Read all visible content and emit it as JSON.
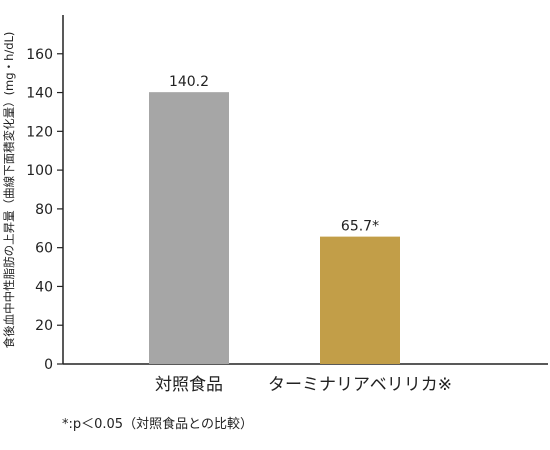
{
  "chart_data": {
    "type": "bar",
    "ylabel": "食後血中中性脂肪の上昇量（曲線下面積変化量）(mg・h/dL)",
    "categories": [
      "対照食品",
      "ターミナリアベリリカ※"
    ],
    "values": [
      140.2,
      65.7
    ],
    "data_labels": [
      "140.2",
      "65.7*"
    ],
    "ylim": [
      0,
      180
    ],
    "yticks": [
      0,
      20,
      40,
      60,
      80,
      100,
      120,
      140,
      160
    ],
    "colors": [
      "#a6a6a6",
      "#c29e48"
    ],
    "grid": false
  },
  "footnote": "*:p＜0.05（対照食品との比較）"
}
